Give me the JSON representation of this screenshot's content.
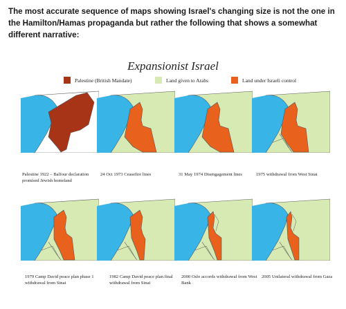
{
  "intro_text": "The most accurate sequence of maps showing Israel's changing size is not the one in the Hamilton/Hamas propaganda but rather the following that shows a somewhat different narrative:",
  "figure": {
    "title": "Expansionist Israel",
    "colors": {
      "sea": "#39b4e6",
      "mandate": "#a83418",
      "arab": "#d8eab4",
      "israel": "#e8621e",
      "border": "#555555"
    },
    "legend": [
      {
        "label": "Palestine (British Mandate)",
        "color": "#a83418"
      },
      {
        "label": "Land given to Arabs",
        "color": "#d8eab4"
      },
      {
        "label": "Land under Israeli control",
        "color": "#e8621e"
      }
    ],
    "maps": [
      {
        "caption": "Palestine 1922 – Balfour declaration promised Jewish homeland",
        "stage": "mandate_1922"
      },
      {
        "caption": "24 Oct 1973 Ceasefire lines",
        "stage": "ceasefire_1973"
      },
      {
        "caption": "31 May 1974 Disengagement lines",
        "stage": "disengagement_1974"
      },
      {
        "caption": "1975 withdrawal from West Sinai",
        "stage": "west_sinai_1975"
      },
      {
        "caption": "1979 Camp David peace plan phase 1 withdrawal from Sinai",
        "stage": "camp_david_1979"
      },
      {
        "caption": "1982 Camp David peace plan final withdrawal from Sinai",
        "stage": "camp_david_1982"
      },
      {
        "caption": "2000 Oslo accords withdrawal from West Bank",
        "stage": "oslo_2000"
      },
      {
        "caption": "2005 Unilateral withdrawal from Gaza",
        "stage": "gaza_2005"
      }
    ]
  }
}
